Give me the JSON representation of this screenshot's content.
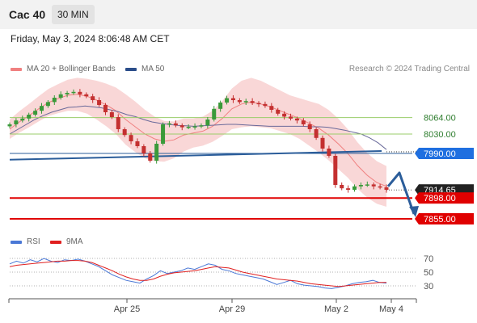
{
  "header": {
    "title": "Cac 40",
    "timeframe": "30 MIN"
  },
  "date_text": "Friday, May 3, 2024 8:06:48 AM CET",
  "legend": {
    "bb_label": "MA 20 + Bollinger Bands",
    "ma50_label": "MA 50",
    "research": "Research © 2024 Trading Central",
    "rsi_label": "RSI",
    "ma9_label": "9MA"
  },
  "colors": {
    "up": "#3a9a3a",
    "down": "#c43030",
    "bb_line": "#f08080",
    "bb_fill": "#f7c9c9",
    "ma50": "#6a6a9a",
    "support_green": "#9acd6a",
    "blue_line": "#2b5d9a",
    "red_level": "#e00000",
    "rsi": "#4a78d6",
    "rsi_ma": "#e02020",
    "arrow": "#2b5d9a"
  },
  "chart_data": [
    {
      "type": "candlestick",
      "title": "Cac 40",
      "x_tick_labels": [
        "Apr 25",
        "Apr 29",
        "May 2",
        "May 4"
      ],
      "levels": [
        {
          "value": 8064.0,
          "label": "8064.00",
          "kind": "resistance"
        },
        {
          "value": 8030.0,
          "label": "8030.00",
          "kind": "resistance"
        },
        {
          "value": 7990.0,
          "label": "7990.00",
          "kind": "pivot"
        },
        {
          "value": 7914.65,
          "label": "7914.65",
          "kind": "last"
        },
        {
          "value": 7898.0,
          "label": "7898.00",
          "kind": "support"
        },
        {
          "value": 7855.0,
          "label": "7855.00",
          "kind": "support"
        }
      ],
      "close_path": [
        8050,
        8058,
        8062,
        8070,
        8078,
        8088,
        8096,
        8105,
        8112,
        8115,
        8117,
        8112,
        8108,
        8100,
        8090,
        8075,
        8065,
        8040,
        8028,
        8015,
        8005,
        7990,
        7975,
        8010,
        8050,
        8052,
        8048,
        8044,
        8045,
        8046,
        8048,
        8060,
        8082,
        8095,
        8104,
        8100,
        8096,
        8098,
        8094,
        8092,
        8088,
        8080,
        8072,
        8066,
        8062,
        8058,
        8050,
        8040,
        8022,
        8000,
        7985,
        7925,
        7918,
        7915,
        7922,
        7925,
        7926,
        7922,
        7920,
        7915
      ],
      "ma50_path": [
        8030,
        8040,
        8050,
        8060,
        8068,
        8075,
        8080,
        8085,
        8086,
        8088,
        8086,
        8084,
        8080,
        8076,
        8070,
        8066,
        8060,
        8055,
        8052,
        8050,
        8048,
        8047,
        8046,
        8047,
        8048,
        8049,
        8050,
        8050,
        8049,
        8048,
        8047,
        8046,
        8046,
        8046,
        8046,
        8046,
        8045,
        8045,
        8044,
        8041,
        8038,
        8034,
        8030,
        8022,
        8012,
        7998
      ],
      "bb_mid_path": [
        8040,
        8055,
        8068,
        8082,
        8095,
        8103,
        8110,
        8112,
        8108,
        8100,
        8090,
        8078,
        8060,
        8045,
        8030,
        8020,
        8015,
        8018,
        8028,
        8032,
        8036,
        8046,
        8062,
        8082,
        8092,
        8096,
        8092,
        8086,
        8078,
        8070,
        8062,
        8052,
        8042,
        8028,
        8010,
        7990,
        7965,
        7945,
        7930,
        7922
      ],
      "bb_band_half_width": [
        20,
        22,
        24,
        26,
        28,
        30,
        32,
        34,
        36,
        40,
        44,
        48,
        52,
        52,
        50,
        46,
        42,
        38,
        34,
        30,
        30,
        32,
        36,
        42,
        48,
        50,
        48,
        44,
        42,
        40,
        42,
        46,
        50,
        52,
        52,
        50,
        48,
        46,
        44,
        42
      ],
      "trendline": {
        "from": 7977,
        "to": 7995
      },
      "projection": [
        7922,
        7950,
        7865
      ]
    },
    {
      "type": "line",
      "title": "RSI",
      "y_ticks": [
        70,
        50,
        30
      ],
      "series": [
        {
          "name": "RSI",
          "values": [
            62,
            66,
            63,
            68,
            65,
            70,
            66,
            64,
            68,
            67,
            69,
            66,
            62,
            58,
            52,
            46,
            42,
            38,
            36,
            34,
            40,
            45,
            52,
            48,
            50,
            52,
            56,
            54,
            58,
            62,
            60,
            54,
            52,
            48,
            46,
            44,
            42,
            40,
            36,
            32,
            35,
            38,
            33,
            31,
            30,
            29,
            27,
            26,
            28,
            30,
            33,
            35,
            36,
            38,
            35,
            34
          ]
        },
        {
          "name": "9MA",
          "values": [
            58,
            60,
            61,
            62,
            63,
            64,
            65,
            66,
            66,
            67,
            67,
            66,
            64,
            60,
            56,
            52,
            47,
            43,
            40,
            38,
            38,
            40,
            44,
            47,
            49,
            50,
            51,
            52,
            54,
            56,
            58,
            57,
            56,
            53,
            50,
            48,
            46,
            44,
            42,
            40,
            39,
            38,
            37,
            35,
            33,
            32,
            31,
            30,
            29,
            30,
            31,
            32,
            33,
            34,
            35,
            35
          ]
        }
      ]
    }
  ]
}
